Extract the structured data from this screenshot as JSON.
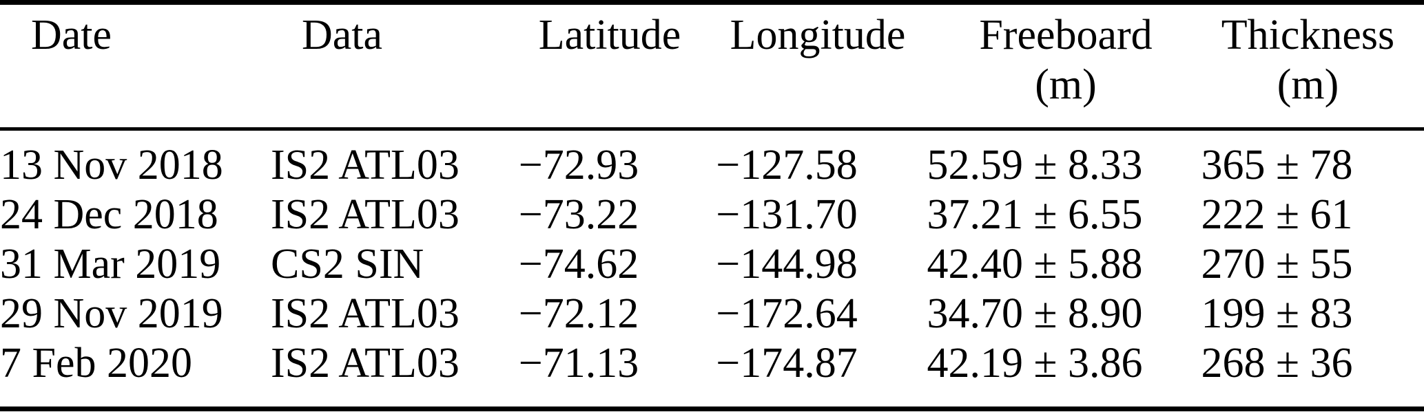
{
  "colors": {
    "background": "#ffffff",
    "text": "#000000",
    "rule": "#000000"
  },
  "table": {
    "columns": [
      {
        "label": "Date",
        "unit": ""
      },
      {
        "label": "Data",
        "unit": ""
      },
      {
        "label": "Latitude",
        "unit": ""
      },
      {
        "label": "Longitude",
        "unit": ""
      },
      {
        "label": "Freeboard",
        "unit": "(m)"
      },
      {
        "label": "Thickness",
        "unit": "(m)"
      }
    ],
    "rows": [
      [
        "13 Nov 2018",
        "IS2 ATL03",
        "−72.93",
        "−127.58",
        "52.59 ± 8.33",
        "365 ± 78"
      ],
      [
        "24 Dec 2018",
        "IS2 ATL03",
        "−73.22",
        "−131.70",
        "37.21 ± 6.55",
        "222 ± 61"
      ],
      [
        "31 Mar 2019",
        "CS2 SIN",
        "−74.62",
        "−144.98",
        "42.40 ± 5.88",
        "270 ± 55"
      ],
      [
        "29 Nov 2019",
        "IS2 ATL03",
        "−72.12",
        "−172.64",
        "34.70 ± 8.90",
        "199 ± 83"
      ],
      [
        "7 Feb 2020",
        "IS2 ATL03",
        "−71.13",
        "−174.87",
        "42.19 ± 3.86",
        "268 ± 36"
      ]
    ]
  }
}
